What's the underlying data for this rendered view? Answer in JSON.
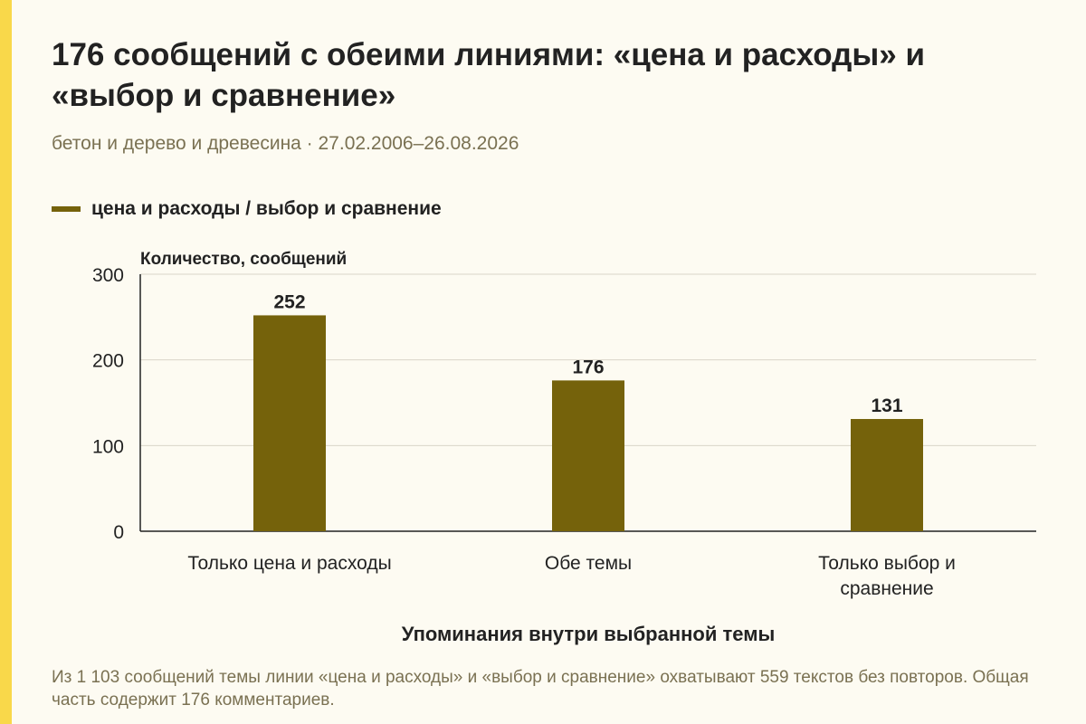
{
  "title": "176 сообщений с обеими линиями: «цена и расходы» и «выбор и сравнение»",
  "subtitle": "бетон и дерево и древесина · 27.02.2006–26.08.2026",
  "footnote": "Из 1 103 сообщений темы линии «цена и расходы» и «выбор и сравнение» охватывают 559 текстов без повторов. Общая часть содержит 176 комментариев.",
  "colors": {
    "bar": "#75620b",
    "accent": "#f9d84a",
    "muted": "#7a7152"
  },
  "chart_data": {
    "type": "bar",
    "title": "176 сообщений с обеими линиями: «цена и расходы» и «выбор и сравнение»",
    "categories": [
      [
        "Только цена и расходы"
      ],
      [
        "Обе темы"
      ],
      [
        "Только выбор и",
        "сравнение"
      ]
    ],
    "series": [
      {
        "name": "цена и расходы / выбор и сравнение",
        "values": [
          252,
          176,
          131
        ]
      }
    ],
    "xlabel": "Упоминания внутри выбранной темы",
    "ylabel": "Количество, сообщений",
    "ylim": [
      0,
      300
    ],
    "yticks": [
      0,
      100,
      200,
      300
    ],
    "grid": true,
    "legend": "top-left"
  }
}
